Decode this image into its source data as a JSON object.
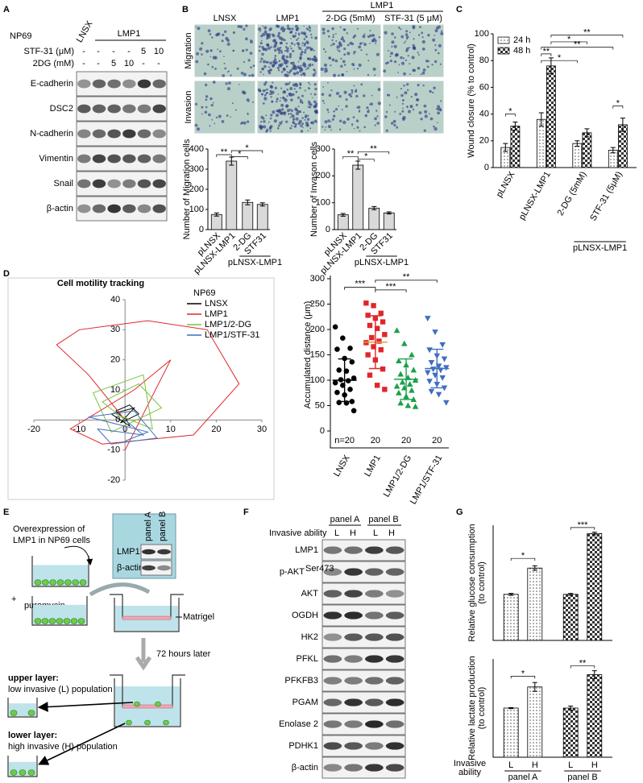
{
  "panel_labels": [
    "A",
    "B",
    "C",
    "D",
    "E",
    "F",
    "G"
  ],
  "panel_a": {
    "cell_line": "NP69",
    "lane_groups": [
      "LNSX",
      "LMP1"
    ],
    "treatments": [
      {
        "label": "STF-31 (μM)",
        "cells": [
          "-",
          "-",
          "-",
          "-",
          "5",
          "10"
        ]
      },
      {
        "label": "2DG (mM)",
        "cells": [
          "-",
          "-",
          "5",
          "10",
          "-",
          "-"
        ]
      }
    ],
    "blots": [
      "E-cadherin",
      "DSC2",
      "N-cadherin",
      "Vimentin",
      "Snail",
      "β-actin"
    ]
  },
  "panel_b": {
    "group_label": "LMP1",
    "columns": [
      "LNSX",
      "LMP1",
      "2-DG (5mM)",
      "STF-31 (5 μM)"
    ],
    "rows": [
      "Migration",
      "Invasion"
    ]
  },
  "panel_e": {
    "intro": [
      "Overexpression  of",
      "LMP1 in NP69 cells"
    ],
    "plus": "+",
    "selection": "puromycin",
    "matrigel": "Matrigel",
    "time": "72 hours later",
    "upper": {
      "title": "upper layer:",
      "text": "low invasive (L) population"
    },
    "lower": {
      "title": "lower layer:",
      "text": "high invasive (H) population"
    },
    "inset": {
      "columns": [
        "panel A",
        "panel B"
      ],
      "rows": [
        "LMP1",
        "β-actin"
      ]
    }
  },
  "panel_f": {
    "lane_groups": [
      "panel A",
      "panel B"
    ],
    "row_label": "Invasive  ability",
    "lanes": [
      "L",
      "H",
      "L",
      "H"
    ],
    "blots": [
      "LMP1",
      "p-AKT",
      "AKT",
      "OGDH",
      "HK2",
      "PFKL",
      "PFKFB3",
      "PGAM",
      "Enolase 2",
      "PDHK1",
      "β-actin"
    ],
    "superscript": "Ser473"
  },
  "chart_data": [
    {
      "type": "bar",
      "y_label": "Number of Migration cells",
      "categories": [
        "pLNSX",
        "pLNSX-LMP1",
        "2-DG",
        "STF31"
      ],
      "group_label": "pLNSX-LMP1",
      "values": [
        75,
        340,
        135,
        125
      ],
      "errors": [
        8,
        20,
        12,
        8
      ],
      "color": "#d9d9d9",
      "ylim": [
        0,
        400
      ],
      "yticks": [
        0,
        100,
        200,
        300,
        400
      ],
      "significance": [
        "**",
        "*",
        "*"
      ]
    },
    {
      "type": "bar",
      "y_label": "Number of Invason cells",
      "categories": [
        "pLNSX",
        "pLNSX-LMP1",
        "2-DG",
        "STF31"
      ],
      "group_label": "pLNSX-LMP1",
      "values": [
        55,
        240,
        80,
        62
      ],
      "errors": [
        5,
        15,
        6,
        4
      ],
      "color": "#d9d9d9",
      "ylim": [
        0,
        300
      ],
      "yticks": [
        0,
        100,
        200,
        300
      ],
      "significance": [
        "**",
        "*",
        "**"
      ]
    },
    {
      "type": "bar",
      "y_label": "Wound closure (% to control)",
      "categories": [
        "pLNSX",
        "pLNSX-LMP1",
        "2-DG (5mM)",
        "STF-31 (5μM)"
      ],
      "group_label": "pLNSX-LMP1",
      "series": [
        {
          "name": "24 h",
          "pattern": "dots",
          "values": [
            15,
            36,
            18,
            13
          ],
          "errors": [
            3,
            5,
            2,
            2
          ]
        },
        {
          "name": "48 h",
          "pattern": "checker",
          "values": [
            31,
            76,
            26,
            32
          ],
          "errors": [
            3,
            6,
            3,
            5
          ]
        }
      ],
      "ylim": [
        0,
        100
      ],
      "yticks": [
        0,
        20,
        40,
        60,
        80,
        100
      ],
      "legend": "top-left",
      "significance": [
        "*",
        "**",
        "*",
        "**",
        "**",
        "*",
        "*"
      ]
    },
    {
      "type": "line",
      "title": "Cell motility tracking",
      "legend_title": "NP69",
      "series": [
        {
          "name": "LNSX",
          "color": "#000000",
          "x": [
            0,
            -2,
            1,
            3,
            -1,
            2,
            -3,
            1,
            0
          ],
          "values": [
            0,
            3,
            5,
            2,
            -1,
            4,
            2,
            -2,
            1
          ]
        },
        {
          "name": "LMP1",
          "color": "#e0262b",
          "x": [
            0,
            -8,
            -15,
            -10,
            5,
            18,
            25,
            15,
            -5,
            -12,
            2,
            10,
            0
          ],
          "values": [
            0,
            15,
            25,
            30,
            33,
            30,
            12,
            -5,
            -8,
            -3,
            10,
            20,
            -10
          ]
        },
        {
          "name": "LMP1/2-DG",
          "color": "#7dc242",
          "x": [
            0,
            -5,
            3,
            8,
            -3,
            -7,
            4,
            6,
            -2
          ],
          "values": [
            0,
            6,
            12,
            4,
            -4,
            9,
            15,
            -3,
            2
          ]
        },
        {
          "name": "LMP1/STF-31",
          "color": "#3f6fbf",
          "x": [
            0,
            4,
            -6,
            -3,
            7,
            2,
            -8,
            5,
            0
          ],
          "values": [
            0,
            -5,
            -3,
            -8,
            -6,
            3,
            1,
            -4,
            -7
          ]
        }
      ],
      "xlim": [
        -20,
        30
      ],
      "xticks": [
        -20,
        -10,
        0,
        10,
        20,
        30
      ],
      "ylim": [
        -20,
        40
      ],
      "yticks": [
        -20,
        -10,
        0,
        10,
        20,
        30,
        40
      ]
    },
    {
      "type": "strip",
      "y_label": "Accumulated distance (μm)",
      "categories": [
        "LNSX",
        "LMP1",
        "LMP1/2-DG",
        "LMP1/STF-31"
      ],
      "n_labels": [
        "n=20",
        "20",
        "20",
        "20"
      ],
      "groups": [
        {
          "color": "#000000",
          "marker": "circle",
          "mean": 100,
          "sd": 42,
          "values": [
            205,
            183,
            163,
            161,
            143,
            136,
            120,
            118,
            104,
            101,
            99,
            95,
            90,
            82,
            76,
            71,
            58,
            56,
            55,
            40
          ]
        },
        {
          "color": "#e0262b",
          "marker": "square",
          "mean": 175,
          "sd": 52,
          "values": [
            252,
            247,
            232,
            228,
            222,
            215,
            208,
            202,
            190,
            184,
            177,
            174,
            166,
            160,
            150,
            140,
            122,
            110,
            90,
            82
          ]
        },
        {
          "color": "#1aa04a",
          "marker": "triangle-up",
          "mean": 102,
          "sd": 40,
          "values": [
            198,
            172,
            150,
            138,
            130,
            120,
            112,
            105,
            100,
            96,
            92,
            88,
            85,
            80,
            75,
            68,
            62,
            55,
            50,
            48
          ]
        },
        {
          "color": "#3f6fbf",
          "marker": "triangle-down",
          "mean": 123,
          "sd": 38,
          "values": [
            222,
            195,
            170,
            160,
            148,
            142,
            135,
            128,
            125,
            122,
            120,
            115,
            110,
            105,
            98,
            92,
            85,
            78,
            72,
            56
          ]
        }
      ],
      "ylim": [
        0,
        300
      ],
      "yticks": [
        0,
        50,
        100,
        150,
        200,
        250,
        300
      ],
      "significance": [
        "***",
        "***",
        "**"
      ]
    },
    {
      "type": "bar",
      "y_label": [
        "Relative glucose consumption",
        "(to control)"
      ],
      "values": [
        100,
        157,
        100,
        232
      ],
      "errors": [
        2,
        5,
        2,
        3
      ],
      "patterns": [
        "dots",
        "dots",
        "checker",
        "checker"
      ],
      "ylim": [
        0,
        250
      ],
      "significance": [
        "*",
        "***"
      ]
    },
    {
      "type": "bar",
      "y_label": [
        "Relative lactate production",
        "(to control)"
      ],
      "x_label": [
        "Invasive",
        "ability"
      ],
      "categories": [
        "L",
        "H",
        "L",
        "H"
      ],
      "group_labels": [
        "panel A",
        "panel B"
      ],
      "values": [
        100,
        143,
        100,
        168
      ],
      "errors": [
        1,
        9,
        4,
        8
      ],
      "patterns": [
        "dots",
        "dots",
        "checker",
        "checker"
      ],
      "ylim": [
        0,
        200
      ],
      "significance": [
        "*",
        "**"
      ]
    }
  ]
}
